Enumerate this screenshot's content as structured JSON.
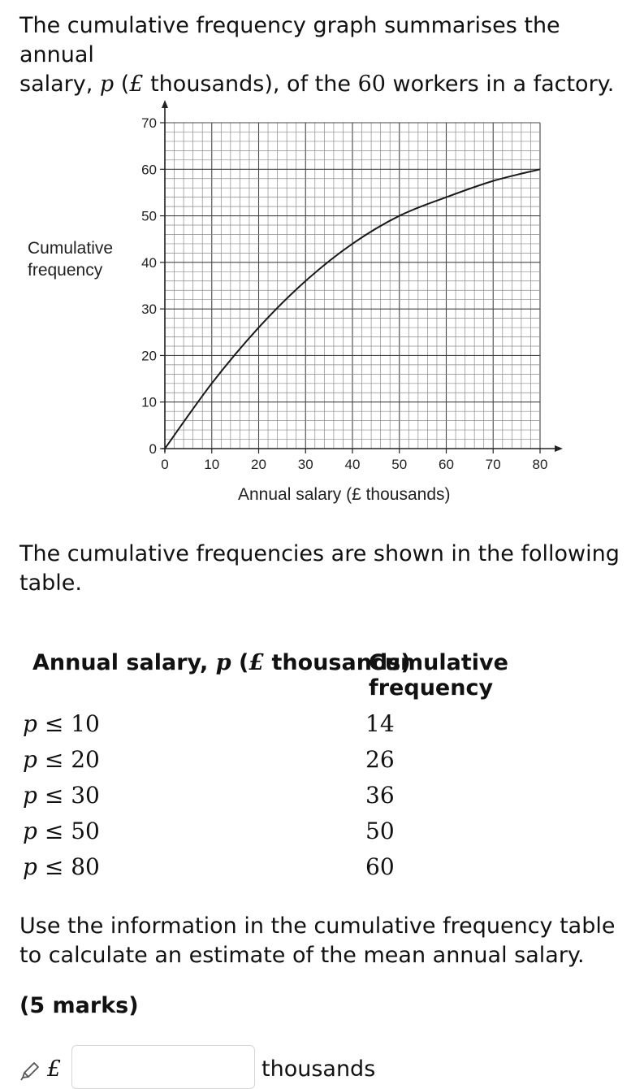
{
  "question": {
    "intro_line1": "The cumulative frequency graph summarises the annual",
    "intro_line2a": "salary, ",
    "intro_var": "p",
    "intro_open": " (",
    "intro_pound": "£",
    "intro_line2b": " thousands), of the ",
    "intro_count": "60",
    "intro_line2c": " workers in a factory.",
    "table_intro": "The cumulative frequencies are shown in the following table.",
    "task": "Use the information in the cumulative frequency table to calculate an estimate of the mean annual salary.",
    "marks": "(5 marks)"
  },
  "chart_data": {
    "type": "line",
    "title": "",
    "xlabel": "Annual salary (£ thousands)",
    "ylabel_line1": "Cumulative",
    "ylabel_line2": "frequency",
    "xlim": [
      0,
      80
    ],
    "ylim": [
      0,
      70
    ],
    "xticks": [
      0,
      10,
      20,
      30,
      40,
      50,
      60,
      70,
      80
    ],
    "yticks": [
      0,
      10,
      20,
      30,
      40,
      50,
      60,
      70
    ],
    "grid": true,
    "series": [
      {
        "x": [
          0,
          10,
          20,
          30,
          40,
          50,
          60,
          70,
          80
        ],
        "y": [
          0,
          14,
          26,
          36,
          44,
          50,
          54,
          57.5,
          60
        ]
      }
    ]
  },
  "table": {
    "header_a_pre": "Annual salary, ",
    "header_a_var": "p",
    "header_a_open": " (",
    "header_a_pound": "£",
    "header_a_post": " thousands)",
    "header_b": "Cumulative frequency",
    "rows": [
      {
        "var": "p",
        "sym": " ≤ ",
        "bound": "10",
        "cf": "14"
      },
      {
        "var": "p",
        "sym": " ≤ ",
        "bound": "20",
        "cf": "26"
      },
      {
        "var": "p",
        "sym": " ≤ ",
        "bound": "30",
        "cf": "36"
      },
      {
        "var": "p",
        "sym": " ≤ ",
        "bound": "50",
        "cf": "50"
      },
      {
        "var": "p",
        "sym": " ≤ ",
        "bound": "80",
        "cf": "60"
      }
    ]
  },
  "answer": {
    "currency": "£",
    "value": "",
    "unit": "thousands",
    "icon": "pencil-icon"
  }
}
